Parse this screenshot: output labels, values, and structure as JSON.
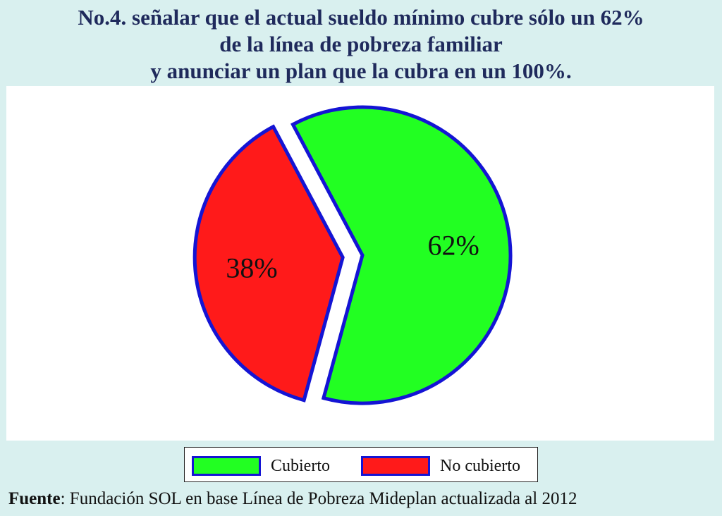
{
  "title_lines": [
    "No.4. señalar que el actual sueldo mínimo cubre sólo un 62%",
    "de la línea de pobreza familiar",
    "y anunciar un plan que la cubra en un 100%."
  ],
  "chart_data": {
    "type": "pie",
    "title": "No.4. señalar que el actual sueldo mínimo cubre sólo un 62% de la línea de pobreza familiar y anunciar un plan que la cubra en un 100%.",
    "slices": [
      {
        "name": "Cubierto",
        "value": 62,
        "label": "62%",
        "color": "#22ff22",
        "exploded": false
      },
      {
        "name": "No cubierto",
        "value": 38,
        "label": "38%",
        "color": "#ff1a1a",
        "exploded": true
      }
    ],
    "border_color": "#1414d4",
    "legend_position": "bottom"
  },
  "legend": [
    {
      "label": "Cubierto",
      "color": "#22ff22"
    },
    {
      "label": "No cubierto",
      "color": "#ff1a1a"
    }
  ],
  "source": {
    "prefix": "Fuente",
    "text": ": Fundación SOL en base Línea de Pobreza Mideplan actualizada al 2012"
  }
}
